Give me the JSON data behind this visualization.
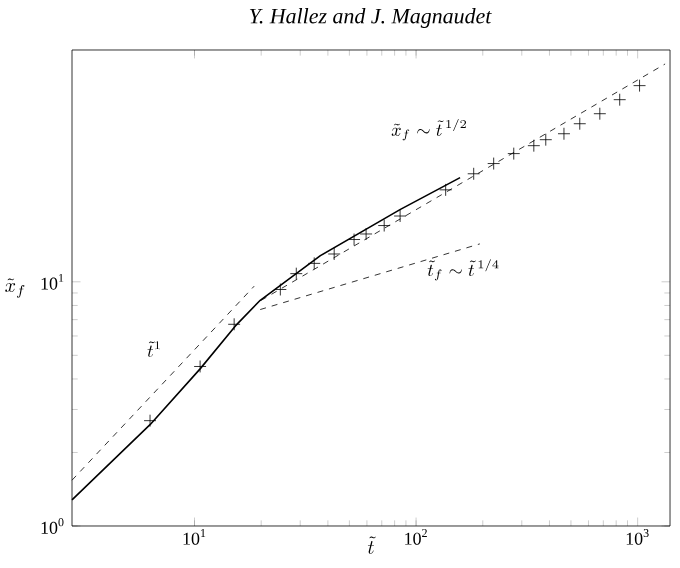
{
  "chart_data": {
    "type": "scatter",
    "xlabel": "\\tilde{t}",
    "ylabel": "\\tilde{x}_f",
    "log": "xy",
    "grid": false,
    "xlim": [
      2.8,
      1400
    ],
    "ylim": [
      1,
      89
    ],
    "xticks": [
      {
        "value": 10,
        "label": "10$^{1}$"
      },
      {
        "value": 100,
        "label": "10$^{2}$"
      },
      {
        "value": 1000,
        "label": "10$^{3}$"
      }
    ],
    "yticks": [
      {
        "value": 1,
        "label": "10$^{0}$"
      },
      {
        "value": 10,
        "label": "10$^{1}$"
      }
    ],
    "series": [
      {
        "marker": "cross",
        "color": "#000000",
        "x": [
          6.3,
          10.6,
          15.1,
          24.4,
          28.8,
          34.7,
          42.7,
          52.5,
          59.5,
          71.8,
          84.7,
          136,
          182,
          224,
          276,
          340,
          385,
          465,
          548,
          675,
          830,
          1020
        ],
        "values": [
          2.7,
          4.5,
          6.7,
          9.3,
          10.8,
          11.9,
          13.0,
          14.9,
          15.7,
          17.0,
          18.6,
          23.8,
          27.7,
          30.5,
          33.5,
          36.1,
          38.2,
          40.4,
          44.4,
          48.8,
          55.7,
          63.6
        ]
      },
      {
        "type": "line",
        "line_style": "solid",
        "color": "#000000",
        "x": [
          2.8,
          6.3,
          10.6,
          15.3,
          19.8,
          37,
          85,
          158
        ],
        "values": [
          1.28,
          2.6,
          4.4,
          6.6,
          8.4,
          12.8,
          19.8,
          26.7
        ]
      },
      {
        "type": "line",
        "line_style": "dashed",
        "color": "#000000",
        "x": [
          2.8,
          18.6
        ],
        "values": [
          1.54,
          9.6
        ]
      },
      {
        "type": "line",
        "line_style": "dashed",
        "color": "#000000",
        "x": [
          20,
          1330
        ],
        "values": [
          8.4,
          78
        ]
      },
      {
        "type": "line",
        "line_style": "dashed",
        "color": "#000000",
        "x": [
          19.8,
          194
        ],
        "values": [
          7.7,
          14.3
        ]
      }
    ],
    "annotations": [
      "Y. Hallez and J. Magnaudet",
      "\\tilde{x}_f \\sim \\tilde{t}^{\\,1/2}",
      "\\tilde{t}_f \\sim \\tilde{t}^{\\,1/4}",
      "\\tilde{t}^{1}"
    ]
  }
}
